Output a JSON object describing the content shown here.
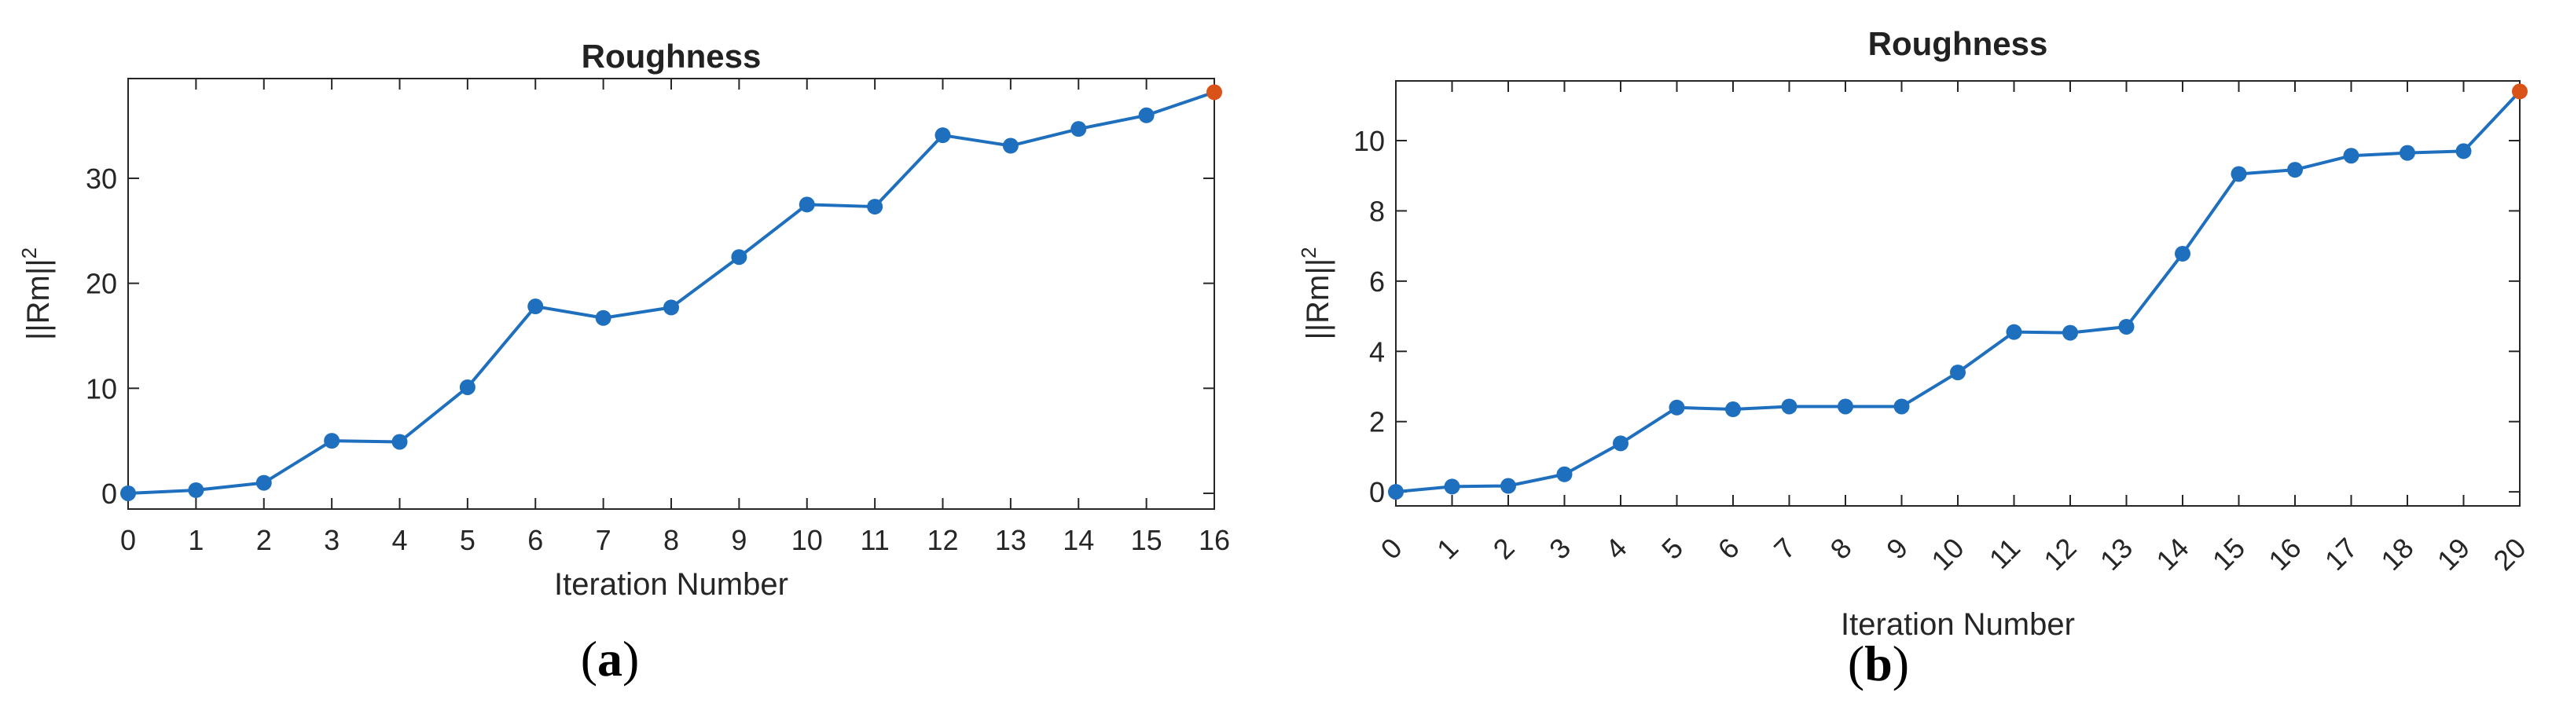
{
  "colors": {
    "line": "#1f6fbf",
    "last_point": "#d95319",
    "axis": "#262626",
    "grid": "#cfcfcf"
  },
  "chart_data": [
    {
      "type": "line",
      "title": "Roughness",
      "xlabel": "Iteration Number",
      "ylabel_main": "||Rm||",
      "ylabel_sup": "2",
      "panel_open": "(",
      "panel_letter": "a",
      "panel_close": ")",
      "x": [
        0,
        1,
        2,
        3,
        4,
        5,
        6,
        7,
        8,
        9,
        10,
        11,
        12,
        13,
        14,
        15,
        16
      ],
      "values": [
        0,
        0.3,
        1.0,
        5.0,
        4.9,
        10.1,
        17.8,
        16.7,
        17.7,
        22.5,
        27.5,
        27.3,
        34.1,
        33.1,
        34.7,
        36.0,
        38.2
      ],
      "xlim": [
        0,
        16
      ],
      "ylim": [
        -1.5,
        39.5
      ],
      "yticks": [
        0,
        10,
        20,
        30
      ],
      "xticks": [
        0,
        1,
        2,
        3,
        4,
        5,
        6,
        7,
        8,
        9,
        10,
        11,
        12,
        13,
        14,
        15,
        16
      ],
      "xtick_rotation": 0,
      "grid": false,
      "last_point_highlight": true
    },
    {
      "type": "line",
      "title": "Roughness",
      "xlabel": "Iteration Number",
      "ylabel_main": "||Rm||",
      "ylabel_sup": "2",
      "panel_open": "(",
      "panel_letter": "b",
      "panel_close": ")",
      "x": [
        0,
        1,
        2,
        3,
        4,
        5,
        6,
        7,
        8,
        9,
        10,
        11,
        12,
        13,
        14,
        15,
        16,
        17,
        18,
        19,
        20
      ],
      "values": [
        0,
        0.15,
        0.17,
        0.5,
        1.38,
        2.4,
        2.35,
        2.43,
        2.43,
        2.43,
        3.4,
        4.55,
        4.53,
        4.7,
        6.78,
        9.05,
        9.17,
        9.57,
        9.65,
        9.7,
        11.4
      ],
      "xlim": [
        0,
        20
      ],
      "ylim": [
        -0.4,
        11.7
      ],
      "yticks": [
        0,
        2,
        4,
        6,
        8,
        10
      ],
      "xticks": [
        0,
        1,
        2,
        3,
        4,
        5,
        6,
        7,
        8,
        9,
        10,
        11,
        12,
        13,
        14,
        15,
        16,
        17,
        18,
        19,
        20
      ],
      "xtick_rotation": -45,
      "grid": false,
      "last_point_highlight": true
    }
  ]
}
